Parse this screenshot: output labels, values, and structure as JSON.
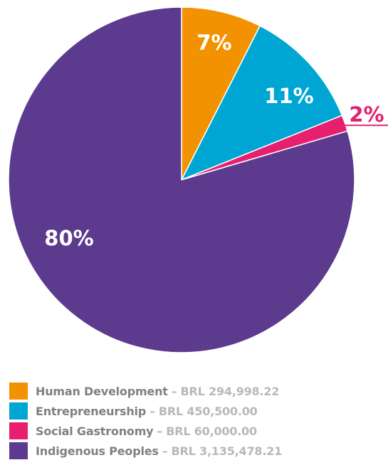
{
  "chart_data": {
    "type": "pie",
    "slices": [
      {
        "label": "Human Development",
        "amount": "BRL 294,998.22",
        "value": 294998.22,
        "percent_label": "7%",
        "color": "#f39200",
        "label_color": "#ffffff"
      },
      {
        "label": "Entrepreneurship",
        "amount": "BRL 450,500.00",
        "value": 450500.0,
        "percent_label": "11%",
        "color": "#00a6d3",
        "label_color": "#ffffff"
      },
      {
        "label": "Social Gastronomy",
        "amount": "BRL 60,000.00",
        "value": 60000.0,
        "percent_label": "2%",
        "color": "#e6206e",
        "label_color": "#e6206e"
      },
      {
        "label": "Indigenous Peoples",
        "amount": "BRL 3,135,478.21",
        "value": 3135478.21,
        "percent_label": "80%",
        "color": "#5c3b8f",
        "label_color": "#ffffff"
      }
    ],
    "start_angle": "12 o'clock",
    "direction": "clockwise",
    "legend_position": "bottom-left",
    "separator": "–"
  }
}
